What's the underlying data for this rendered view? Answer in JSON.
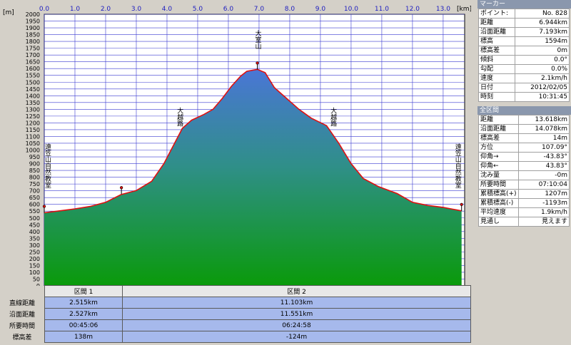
{
  "chart_data": {
    "type": "area",
    "x_unit": "[km]",
    "y_unit": "[m]",
    "xlim": [
      0,
      13.7
    ],
    "ylim": [
      0,
      2000
    ],
    "x_ticks": [
      "0.0",
      "1.0",
      "2.0",
      "3.0",
      "4.0",
      "5.0",
      "6.0",
      "7.0",
      "8.0",
      "9.0",
      "10.0",
      "11.0",
      "12.0",
      "13.0"
    ],
    "y_ticks": [
      "0",
      "50",
      "100",
      "150",
      "200",
      "250",
      "300",
      "350",
      "400",
      "450",
      "500",
      "550",
      "600",
      "650",
      "700",
      "750",
      "800",
      "850",
      "900",
      "950",
      "1000",
      "1050",
      "1100",
      "1150",
      "1200",
      "1250",
      "1300",
      "1350",
      "1400",
      "1450",
      "1500",
      "1550",
      "1600",
      "1650",
      "1700",
      "1750",
      "1800",
      "1850",
      "1900",
      "1950",
      "2000"
    ],
    "grid": true,
    "profile": [
      {
        "x": 0.0,
        "y": 538
      },
      {
        "x": 0.5,
        "y": 552
      },
      {
        "x": 1.0,
        "y": 567
      },
      {
        "x": 1.5,
        "y": 585
      },
      {
        "x": 2.0,
        "y": 615
      },
      {
        "x": 2.5,
        "y": 672
      },
      {
        "x": 3.0,
        "y": 702
      },
      {
        "x": 3.5,
        "y": 770
      },
      {
        "x": 3.9,
        "y": 900
      },
      {
        "x": 4.2,
        "y": 1030
      },
      {
        "x": 4.5,
        "y": 1160
      },
      {
        "x": 4.8,
        "y": 1220
      },
      {
        "x": 5.2,
        "y": 1262
      },
      {
        "x": 5.5,
        "y": 1300
      },
      {
        "x": 5.8,
        "y": 1380
      },
      {
        "x": 6.1,
        "y": 1470
      },
      {
        "x": 6.4,
        "y": 1545
      },
      {
        "x": 6.6,
        "y": 1580
      },
      {
        "x": 6.944,
        "y": 1594
      },
      {
        "x": 7.2,
        "y": 1570
      },
      {
        "x": 7.5,
        "y": 1460
      },
      {
        "x": 7.9,
        "y": 1380
      },
      {
        "x": 8.3,
        "y": 1300
      },
      {
        "x": 8.7,
        "y": 1235
      },
      {
        "x": 9.2,
        "y": 1180
      },
      {
        "x": 9.6,
        "y": 1050
      },
      {
        "x": 10.0,
        "y": 900
      },
      {
        "x": 10.4,
        "y": 790
      },
      {
        "x": 10.9,
        "y": 730
      },
      {
        "x": 11.5,
        "y": 680
      },
      {
        "x": 12.0,
        "y": 615
      },
      {
        "x": 12.5,
        "y": 592
      },
      {
        "x": 13.0,
        "y": 578
      },
      {
        "x": 13.6,
        "y": 552
      }
    ],
    "annotations": [
      {
        "label": "大室山",
        "x": 6.944,
        "y": 1594
      },
      {
        "label": "大越路",
        "x": 4.4,
        "y": 1130
      },
      {
        "label": "大越路",
        "x": 9.4,
        "y": 1130
      },
      {
        "label": "遠笠山自然教室",
        "x": 0.0,
        "y": 550
      },
      {
        "label": "遠笠山自然教室",
        "x": 13.6,
        "y": 550
      }
    ],
    "markers": [
      {
        "x": 0.0,
        "y": 538
      },
      {
        "x": 2.515,
        "y": 676
      },
      {
        "x": 6.944,
        "y": 1594
      },
      {
        "x": 13.6,
        "y": 552
      }
    ]
  },
  "section_table": {
    "headers": [
      "区間 1",
      "区間 2"
    ],
    "rows": [
      {
        "label": "直線距離",
        "values": [
          "2.515km",
          "11.103km"
        ]
      },
      {
        "label": "沿面距離",
        "values": [
          "2.527km",
          "11.551km"
        ]
      },
      {
        "label": "所要時間",
        "values": [
          "00:45:06",
          "06:24:58"
        ]
      },
      {
        "label": "標高差",
        "values": [
          "138m",
          "-124m"
        ]
      }
    ]
  },
  "marker_panel": {
    "title": "マーカー",
    "rows": [
      {
        "k": "ポイント:",
        "v": "No. 828"
      },
      {
        "k": "距離",
        "v": "6.944km"
      },
      {
        "k": "沿面距離",
        "v": "7.193km"
      },
      {
        "k": "標高",
        "v": "1594m"
      },
      {
        "k": "標高差",
        "v": "0m"
      },
      {
        "k": "傾斜",
        "v": "0.0°"
      },
      {
        "k": "勾配",
        "v": "0.0%"
      },
      {
        "k": "速度",
        "v": "2.1km/h"
      },
      {
        "k": "日付",
        "v": "2012/02/05"
      },
      {
        "k": "時刻",
        "v": "10:31:45"
      }
    ]
  },
  "all_panel": {
    "title": "全区間",
    "rows": [
      {
        "k": "距離",
        "v": "13.618km"
      },
      {
        "k": "沿面距離",
        "v": "14.078km"
      },
      {
        "k": "標高差",
        "v": "14m"
      },
      {
        "k": "方位",
        "v": "107.09°"
      },
      {
        "k": "仰角→",
        "v": "-43.83°"
      },
      {
        "k": "仰角←",
        "v": "43.83°"
      },
      {
        "k": "沈み量",
        "v": "-0m"
      },
      {
        "k": "所要時間",
        "v": "07:10:04"
      },
      {
        "k": "累積標高(+)",
        "v": "1207m"
      },
      {
        "k": "累積標高(-)",
        "v": "-1193m"
      },
      {
        "k": "平均速度",
        "v": "1.9km/h"
      },
      {
        "k": "見通し",
        "v": "見えます"
      }
    ]
  },
  "colors": {
    "plot_bg": "#ffffff",
    "grid": "#3a3ad0",
    "profile_line": "#e01010",
    "fill_top": "#4a76d6",
    "fill_bottom": "#0a9a0a"
  }
}
